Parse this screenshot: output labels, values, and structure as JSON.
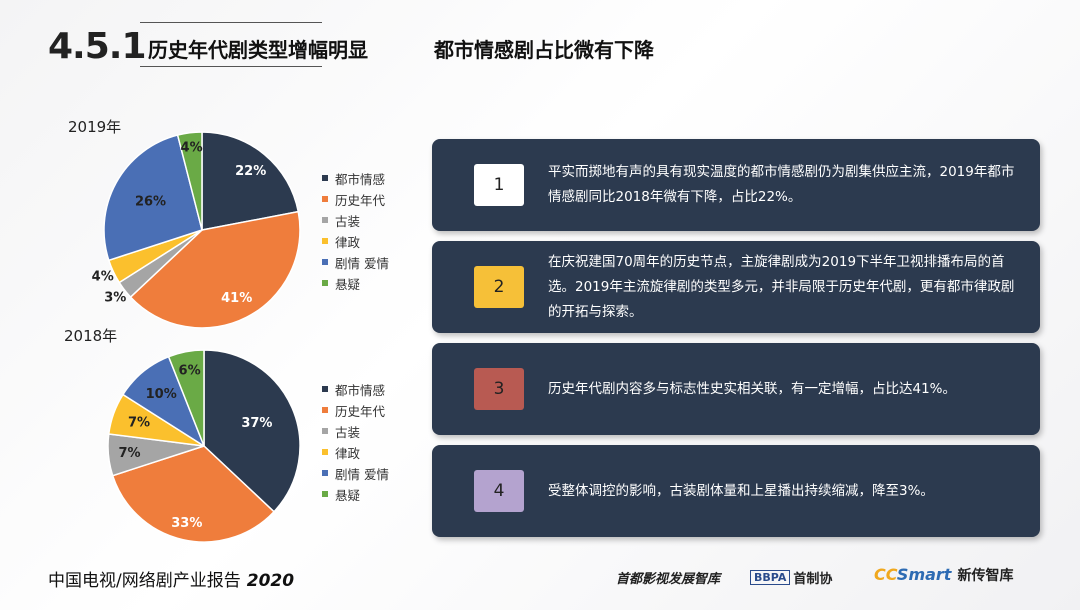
{
  "header": {
    "section_number": "4.5.1",
    "title": "历史年代剧类型增幅明显",
    "subtitle": "都市情感剧占比微有下降"
  },
  "colors": {
    "dushi": "#2c3a4f",
    "lishi": "#ef7d3c",
    "guzhuang": "#a5a5a5",
    "lvzheng": "#fbc02d",
    "juqing": "#4a6fb5",
    "xuanyi": "#6aaa46",
    "card_bg": "#2c3a4f",
    "badge1": "#ffffff",
    "badge2": "#f6c038",
    "badge3": "#b85a52",
    "badge4": "#b4a3cf"
  },
  "chart_data": [
    {
      "type": "pie",
      "title": "2019年",
      "categories": [
        "都市情感",
        "历史年代",
        "古装",
        "律政",
        "剧情  爱情",
        "悬疑"
      ],
      "values": [
        22,
        41,
        3,
        4,
        26,
        4
      ],
      "labels": [
        "22%",
        "41%",
        "3%",
        "4%",
        "26%",
        "4%"
      ],
      "legend": "right"
    },
    {
      "type": "pie",
      "title": "2018年",
      "categories": [
        "都市情感",
        "历史年代",
        "古装",
        "律政",
        "剧情  爱情",
        "悬疑"
      ],
      "values": [
        37,
        33,
        7,
        7,
        10,
        6
      ],
      "labels": [
        "37%",
        "33%",
        "7%",
        "7%",
        "10%",
        "6%"
      ],
      "legend": "right"
    }
  ],
  "cards": [
    {
      "number": "1",
      "text": "平实而掷地有声的具有现实温度的都市情感剧仍为剧集供应主流，2019年都市情感剧同比2018年微有下降，占比22%。"
    },
    {
      "number": "2",
      "text": "在庆祝建国70周年的历史节点，主旋律剧成为2019下半年卫视排播布局的首选。2019年主流旋律剧的类型多元，并非局限于历史年代剧，更有都市律政剧的开拓与探索。"
    },
    {
      "number": "3",
      "text": "历史年代剧内容多与标志性史实相关联，有一定增幅，占比达41%。"
    },
    {
      "number": "4",
      "text": "受整体调控的影响，古装剧体量和上星播出持续缩减，降至3%。"
    }
  ],
  "footer": {
    "report_title": "中国电视/网络剧产业报告",
    "report_year": "2020",
    "org1": "首都影视发展智库",
    "org2_badge": "BBPA",
    "org2_name": "首制协",
    "org3_cc": "CC",
    "org3_smart": "Smart",
    "org3_name": "新传智库"
  }
}
